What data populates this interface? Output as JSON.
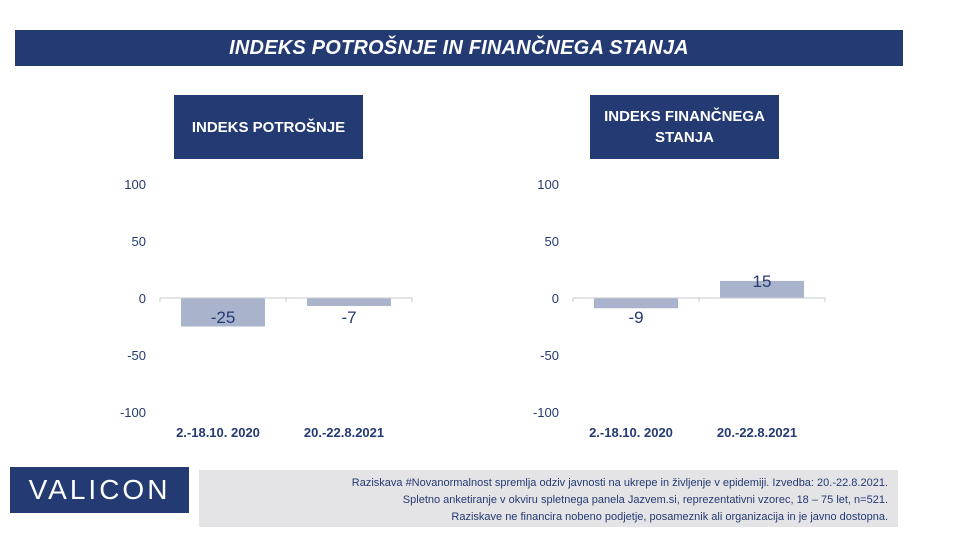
{
  "header": {
    "title": "INDEKS POTROŠNJE IN FINANČNEGA STANJA"
  },
  "colors": {
    "navy": "#243a73",
    "bar": "#aab3cc",
    "footnote_bg": "#e4e4e6"
  },
  "chart_data": [
    {
      "type": "bar",
      "title": "INDEKS POTROŠNJE",
      "categories": [
        "2.-18.10. 2020",
        "20.-22.8.2021"
      ],
      "values": [
        -25,
        -7
      ],
      "data_labels": [
        "-25",
        "-7"
      ],
      "y_ticks": [
        "100",
        "50",
        "0",
        "-50",
        "-100"
      ],
      "ylim": [
        -100,
        100
      ],
      "grid": false
    },
    {
      "type": "bar",
      "title": "INDEKS FINANČNEGA STANJA",
      "categories": [
        "2.-18.10. 2020",
        "20.-22.8.2021"
      ],
      "values": [
        -9,
        15
      ],
      "data_labels": [
        "-9",
        "15"
      ],
      "y_ticks": [
        "100",
        "50",
        "0",
        "-50",
        "-100"
      ],
      "ylim": [
        -100,
        100
      ],
      "grid": false
    }
  ],
  "logo": {
    "text": "VALICON"
  },
  "footnote": {
    "lines": [
      "Raziskava #Novanormalnost spremlja odziv javnosti na ukrepe in življenje v epidemiji. Izvedba: 20.-22.8.2021.",
      "Spletno anketiranje v okviru spletnega panela Jazvem.si, reprezentativni vzorec, 18 – 75 let, n=521.",
      "Raziskave ne financira nobeno podjetje, posameznik ali organizacija in je javno dostopna."
    ]
  }
}
